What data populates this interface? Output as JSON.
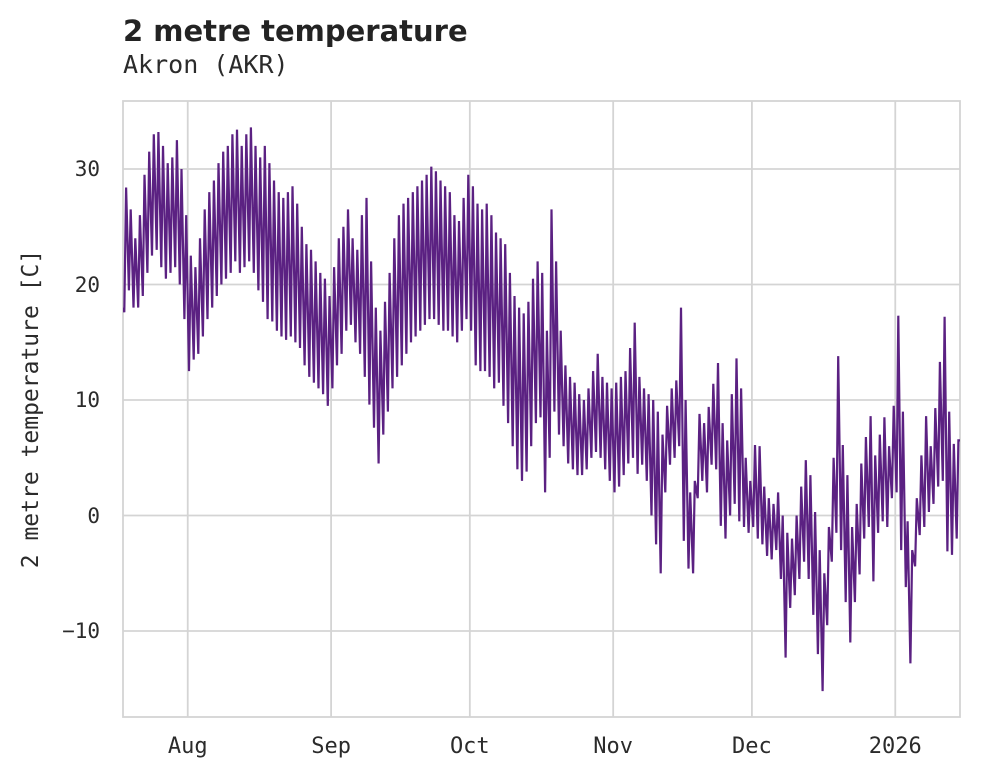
{
  "header": {
    "title": "2 metre temperature",
    "subtitle": "Akron (AKR)"
  },
  "chart_data": {
    "type": "line",
    "title": "2 metre temperature",
    "subtitle": "Akron (AKR)",
    "xlabel": "",
    "ylabel": "2 metre temperature [C]",
    "legend": false,
    "grid": true,
    "line_color": "#5b2182",
    "grid_color": "#d4d4d4",
    "text_color": "#262626",
    "x_axis": {
      "tick_labels": [
        "Aug",
        "Sep",
        "Oct",
        "Nov",
        "Dec",
        "2026"
      ],
      "tick_positions_days": [
        14,
        45,
        75,
        106,
        136,
        167
      ],
      "range_days": [
        0,
        181
      ]
    },
    "y_axis": {
      "tick_values": [
        30,
        20,
        10,
        0,
        -10
      ],
      "tick_labels": [
        "30",
        "20",
        "10",
        "0",
        "−10"
      ],
      "range": [
        -17.4,
        35.9
      ]
    },
    "series": [
      {
        "name": "2 metre temperature",
        "unit": "C",
        "sampling": "daily [min, max] pairs; day 0 = left edge of plot (mid-July), day 181 = right edge (mid-January 2026)",
        "daily_min_max": [
          [
            17.6,
            28.4
          ],
          [
            19.5,
            26.5
          ],
          [
            18,
            24
          ],
          [
            18,
            26
          ],
          [
            19,
            29.5
          ],
          [
            21,
            31.5
          ],
          [
            22.5,
            33
          ],
          [
            23,
            33.2
          ],
          [
            21.5,
            32
          ],
          [
            20.5,
            30.5
          ],
          [
            21,
            31
          ],
          [
            21.5,
            32.5
          ],
          [
            20,
            30
          ],
          [
            17,
            26
          ],
          [
            12.5,
            22.5
          ],
          [
            13.5,
            21.5
          ],
          [
            14,
            24
          ],
          [
            15.5,
            26.5
          ],
          [
            17,
            28
          ],
          [
            18,
            29
          ],
          [
            19,
            30.5
          ],
          [
            20,
            31.5
          ],
          [
            20.5,
            32
          ],
          [
            21,
            33
          ],
          [
            22,
            33.4
          ],
          [
            21,
            32
          ],
          [
            21.5,
            33
          ],
          [
            22,
            33.6
          ],
          [
            21,
            32
          ],
          [
            19.5,
            31
          ],
          [
            18.5,
            32
          ],
          [
            17,
            30.5
          ],
          [
            16.8,
            29
          ],
          [
            16,
            28
          ],
          [
            15.5,
            27.5
          ],
          [
            15.2,
            28
          ],
          [
            15.5,
            28.5
          ],
          [
            15,
            27
          ],
          [
            14.5,
            25
          ],
          [
            13,
            23.5
          ],
          [
            12,
            23
          ],
          [
            11.5,
            22
          ],
          [
            11,
            21
          ],
          [
            10.5,
            20.5
          ],
          [
            9.5,
            19
          ],
          [
            11,
            21.5
          ],
          [
            13,
            24
          ],
          [
            14,
            25
          ],
          [
            16,
            26.5
          ],
          [
            16.5,
            24
          ],
          [
            15,
            23
          ],
          [
            14,
            26
          ],
          [
            12,
            27.5
          ],
          [
            9.6,
            22
          ],
          [
            7.6,
            18
          ],
          [
            4.5,
            16
          ],
          [
            7,
            18.5
          ],
          [
            9,
            21
          ],
          [
            11,
            24
          ],
          [
            12,
            26
          ],
          [
            13,
            27
          ],
          [
            14,
            27.5
          ],
          [
            15,
            28
          ],
          [
            15.5,
            28.5
          ],
          [
            16,
            29
          ],
          [
            16.5,
            29.5
          ],
          [
            17,
            30.2
          ],
          [
            17,
            29.8
          ],
          [
            16.5,
            29
          ],
          [
            16,
            28.5
          ],
          [
            16,
            28
          ],
          [
            15.5,
            26
          ],
          [
            15,
            25.5
          ],
          [
            16,
            27.5
          ],
          [
            17,
            29.5
          ],
          [
            16,
            28.5
          ],
          [
            13,
            27
          ],
          [
            12.5,
            26.5
          ],
          [
            12.5,
            27
          ],
          [
            12,
            26
          ],
          [
            11,
            24.5
          ],
          [
            11.5,
            24
          ],
          [
            9.5,
            23.5
          ],
          [
            8,
            21
          ],
          [
            6,
            19
          ],
          [
            4,
            18
          ],
          [
            3,
            17.5
          ],
          [
            3.8,
            18.5
          ],
          [
            6,
            20.5
          ],
          [
            8,
            22
          ],
          [
            8.5,
            21
          ],
          [
            2,
            16
          ],
          [
            5,
            26.5
          ],
          [
            9,
            22
          ],
          [
            7,
            16
          ],
          [
            6,
            13
          ],
          [
            4.5,
            12
          ],
          [
            4,
            11.5
          ],
          [
            3.5,
            10.5
          ],
          [
            3.5,
            10
          ],
          [
            4,
            11
          ],
          [
            5,
            12.5
          ],
          [
            5.5,
            14
          ],
          [
            5,
            12
          ],
          [
            4,
            11.5
          ],
          [
            3,
            11
          ],
          [
            2,
            11.5
          ],
          [
            2.5,
            12
          ],
          [
            3.5,
            12.5
          ],
          [
            4.5,
            14.5
          ],
          [
            5,
            16.7
          ],
          [
            3.6,
            12
          ],
          [
            4.4,
            11
          ],
          [
            3,
            10.5
          ],
          [
            0,
            10
          ],
          [
            -2.5,
            9
          ],
          [
            -5,
            7
          ],
          [
            2,
            9.5
          ],
          [
            4.4,
            11
          ],
          [
            5,
            11.7
          ],
          [
            6,
            18
          ],
          [
            -2.2,
            10
          ],
          [
            -4.6,
            2
          ],
          [
            -5,
            3
          ],
          [
            1.5,
            8.8
          ],
          [
            3,
            8
          ],
          [
            2,
            9.4
          ],
          [
            4.4,
            11.4
          ],
          [
            4,
            13.2
          ],
          [
            -0.9,
            8
          ],
          [
            -2,
            6.5
          ],
          [
            0,
            10.5
          ],
          [
            1,
            13.6
          ],
          [
            -0.5,
            11
          ],
          [
            -1,
            5
          ],
          [
            -1.5,
            3
          ],
          [
            -1,
            6.1
          ],
          [
            -2,
            6
          ],
          [
            -2.5,
            2.5
          ],
          [
            -3.5,
            1.5
          ],
          [
            -3.8,
            1
          ],
          [
            -3,
            2
          ],
          [
            -5.5,
            0
          ],
          [
            -12.3,
            -1.5
          ],
          [
            -8,
            -2
          ],
          [
            -6.9,
            0
          ],
          [
            -5.5,
            2.5
          ],
          [
            -4,
            4.8
          ],
          [
            -5.5,
            3.5
          ],
          [
            -8.6,
            0.3
          ],
          [
            -12,
            -3
          ],
          [
            -15.2,
            -5
          ],
          [
            -9.5,
            -1
          ],
          [
            -4,
            5
          ],
          [
            -1.5,
            13.8
          ],
          [
            -3,
            6.1
          ],
          [
            -7.5,
            3.5
          ],
          [
            -11,
            -1
          ],
          [
            -7.5,
            1
          ],
          [
            -5.1,
            4.5
          ],
          [
            -2,
            6.8
          ],
          [
            -1,
            8.6
          ],
          [
            -5.7,
            5.2
          ],
          [
            -1.5,
            7
          ],
          [
            -0.5,
            8.5
          ],
          [
            -1,
            6
          ],
          [
            1.5,
            9.5
          ],
          [
            2,
            17.3
          ],
          [
            -3,
            9
          ],
          [
            -6.2,
            -0.5
          ],
          [
            -12.8,
            -3
          ],
          [
            -4.4,
            1.5
          ],
          [
            -1.7,
            5.2
          ],
          [
            -1,
            8.6
          ],
          [
            0.3,
            6
          ],
          [
            1,
            9.3
          ],
          [
            2.5,
            13.3
          ],
          [
            3,
            17.2
          ],
          [
            -3.1,
            9
          ],
          [
            -3.4,
            6.2
          ],
          [
            -2,
            6.5
          ]
        ]
      }
    ]
  }
}
